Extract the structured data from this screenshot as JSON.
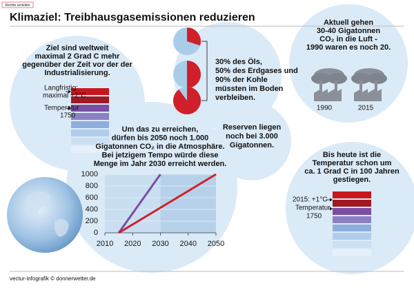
{
  "header": {
    "tag": "Rechte verteilen",
    "title": "Klimaziel: Treibhausgasemissionen reduzieren"
  },
  "goal": {
    "lines": [
      "Ziel sind weltweit",
      "maximal 2 Grad C mehr",
      "gegenüber der Zeit vor der der",
      "Industrialisierung."
    ],
    "labels": [
      "Langfristig:",
      "maximal +2°C",
      "Temperatur",
      "1750"
    ]
  },
  "fossil": {
    "pie_shares": [
      30,
      50,
      90
    ],
    "pie_color": "#d0202a",
    "rest_color": "#a9cde9",
    "lines": [
      "30% des Öls,",
      "50% des Erdgases und",
      "90% der Kohle",
      "müssten im Boden",
      "verbleiben."
    ]
  },
  "current": {
    "lines": [
      "Aktuell gehen",
      "30-40 Gigatonnen",
      "CO₂ in die Luft -",
      "1990 waren es noch 20."
    ],
    "years": [
      "1990",
      "2015"
    ]
  },
  "budget": {
    "lines": [
      "Um das zu erreichen,",
      "dürfen bis 2050 noch 1.000",
      "Gigatonnen CO₂ in die Atmosphäre.",
      "Bei jetzigem Tempo würde diese",
      "Menge im Jahr 2030 erreicht werden."
    ]
  },
  "reserves": {
    "lines": [
      "Reserven liegen",
      "noch bei 3.000",
      "Gigatonnen."
    ]
  },
  "warming": {
    "lines": [
      "Bis heute ist die",
      "Temperatur schon um",
      "ca. 1 Grad C in 100 Jahren",
      "gestiegen."
    ],
    "labels": [
      "2015: +1°C",
      "Temperatur",
      "1750"
    ]
  },
  "footer": {
    "credit": "vectur-infografik © donnerwetter.de"
  },
  "chart_data": {
    "type": "line",
    "xlim": [
      2010,
      2050
    ],
    "ylim": [
      0,
      1000
    ],
    "xticks": [
      2010,
      2020,
      2030,
      2040,
      2050
    ],
    "yticks": [
      0,
      200,
      400,
      600,
      800,
      1000
    ],
    "grid": true,
    "series": [
      {
        "color": "#7a4ea3",
        "x": [
          2015,
          2030
        ],
        "values": [
          0,
          1000
        ]
      },
      {
        "color": "#d0202a",
        "x": [
          2015,
          2050
        ],
        "values": [
          0,
          1000
        ]
      }
    ]
  }
}
